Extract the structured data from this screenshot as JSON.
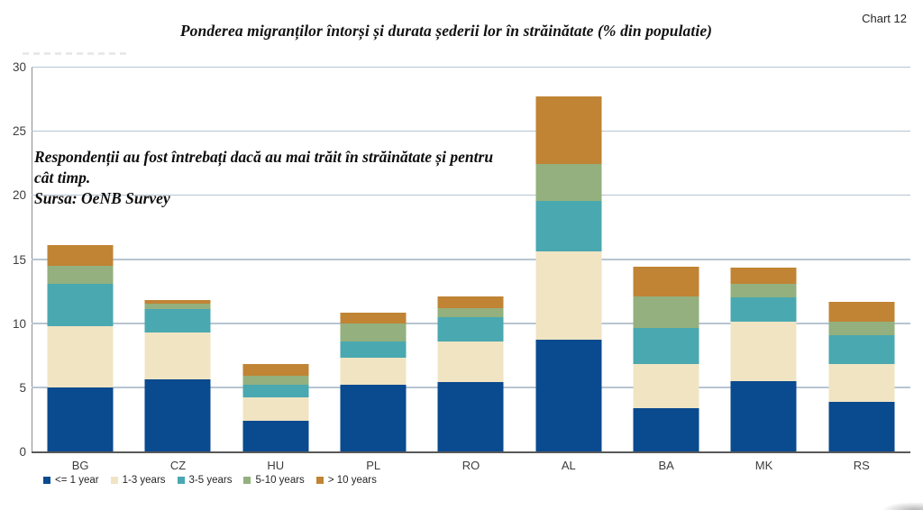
{
  "header": {
    "title": "Ponderea migranților întorși și durata șederii lor în străinătate (% din populatie)",
    "chart_label": "Chart 12"
  },
  "annotation": {
    "line1": "Respondenții au fost întrebați dacă au mai trăit în străinătate și pentru",
    "line2": "cât timp.",
    "line3": "Sursa: OeNB Survey"
  },
  "chart_data": {
    "type": "bar",
    "stacked": true,
    "title": "Ponderea migranților întorși și durata șederii lor în străinătate (% din populatie)",
    "categories": [
      "BG",
      "CZ",
      "HU",
      "PL",
      "RO",
      "AL",
      "BA",
      "MK",
      "RS"
    ],
    "series": [
      {
        "name": "<= 1 year",
        "color": "#0a4a8f",
        "values": [
          5.0,
          5.6,
          2.4,
          5.2,
          5.4,
          8.7,
          3.4,
          5.5,
          3.9
        ]
      },
      {
        "name": "1-3 years",
        "color": "#f0e4c3",
        "values": [
          4.8,
          3.7,
          1.8,
          2.1,
          3.2,
          6.9,
          3.4,
          4.6,
          2.9
        ]
      },
      {
        "name": "3-5 years",
        "color": "#4aa8b0",
        "values": [
          3.3,
          1.8,
          1.0,
          1.3,
          1.9,
          3.9,
          2.8,
          1.9,
          2.3
        ]
      },
      {
        "name": "5-10 years",
        "color": "#93b07e",
        "values": [
          1.4,
          0.4,
          0.7,
          1.4,
          0.7,
          2.9,
          2.5,
          1.1,
          1.0
        ]
      },
      {
        "name": "> 10 years",
        "color": "#c08434",
        "values": [
          1.6,
          0.3,
          0.9,
          0.8,
          0.9,
          5.3,
          2.3,
          1.2,
          1.6
        ]
      }
    ],
    "totals": [
      16.1,
      11.8,
      6.8,
      10.8,
      12.1,
      27.7,
      14.4,
      14.3,
      11.7
    ],
    "xlabel": "",
    "ylabel": "",
    "ylim": [
      0,
      30
    ],
    "yticks": [
      0,
      5,
      10,
      15,
      20,
      25,
      30
    ],
    "grid": true,
    "legend_position": "bottom"
  },
  "style": {
    "gridline_color": "#b7c5d1",
    "axis_color": "#8c8c8c",
    "baseline_color": "#595959",
    "text_color": "#262626"
  }
}
